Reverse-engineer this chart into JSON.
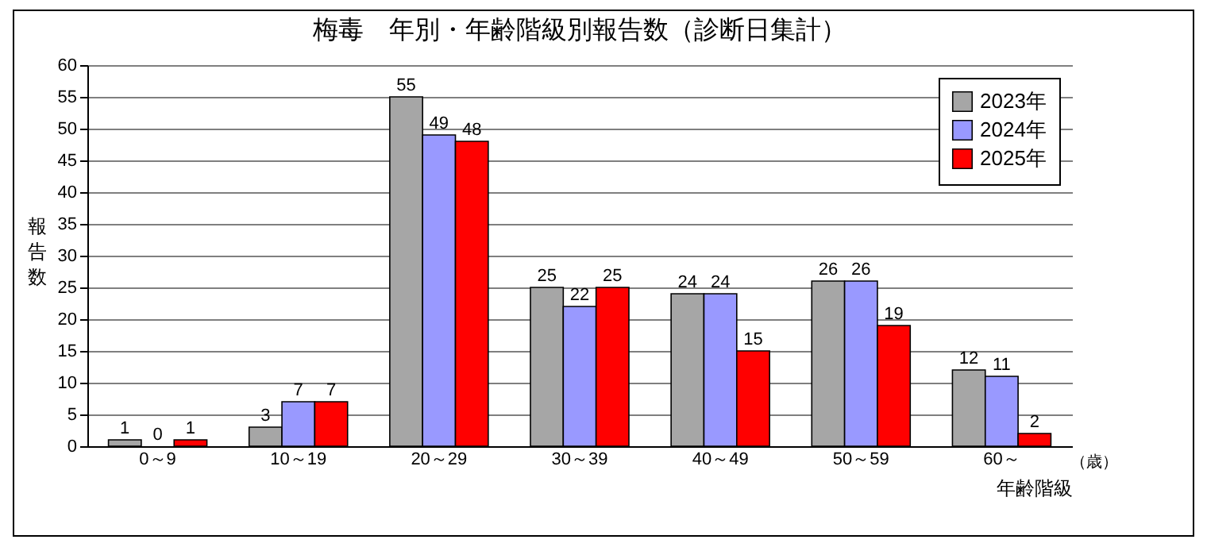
{
  "chart_data": {
    "type": "bar",
    "title": "梅毒　年別・年齢階級別報告数（診断日集計）",
    "xlabel": "年齢階級",
    "ylabel": "報告数",
    "annotations": [
      "（歳）"
    ],
    "categories": [
      "0～9",
      "10～19",
      "20～29",
      "30～39",
      "40～49",
      "50～59",
      "60～"
    ],
    "series": [
      {
        "name": "2023年",
        "color": "#a6a6a6",
        "values": [
          1,
          3,
          55,
          25,
          24,
          26,
          12
        ]
      },
      {
        "name": "2024年",
        "color": "#9999ff",
        "values": [
          0,
          7,
          49,
          22,
          24,
          26,
          11
        ]
      },
      {
        "name": "2025年",
        "color": "#ff0000",
        "values": [
          1,
          7,
          48,
          25,
          15,
          19,
          2
        ]
      }
    ],
    "ylim": [
      0,
      60
    ],
    "yticks": [
      0,
      5,
      10,
      15,
      20,
      25,
      30,
      35,
      40,
      45,
      50,
      55,
      60
    ],
    "grid": "y",
    "legend": "top right",
    "data_labels": true
  }
}
